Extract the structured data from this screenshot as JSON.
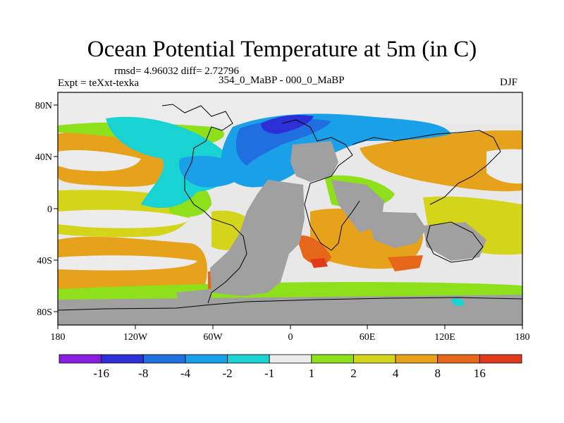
{
  "title": "Ocean Potential Temperature at 5m (in C)",
  "stats": "rmsd= 4.96032 diff= 2.72796",
  "experiment": "Expt = teXxt-texka",
  "comparison": "354_0_MaBP - 000_0_MaBP",
  "season": "DJF",
  "x_ticks": [
    "180",
    "120W",
    "60W",
    "0",
    "60E",
    "120E",
    "180"
  ],
  "y_ticks": [
    "80N",
    "40N",
    "0",
    "40S",
    "80S"
  ],
  "colorbar": {
    "labels": [
      "-16",
      "-8",
      "-4",
      "-2",
      "-1",
      "1",
      "2",
      "4",
      "8",
      "16"
    ],
    "colors": [
      "#8a1ee0",
      "#2d2fd6",
      "#1f6fe0",
      "#1aa0e8",
      "#19d2d2",
      "#ececec",
      "#8de01a",
      "#d4d41a",
      "#e6a21a",
      "#e6661a",
      "#e03a1a"
    ]
  },
  "colors": {
    "land": "#a0a0a0",
    "background_field": "#e8e8e8"
  }
}
